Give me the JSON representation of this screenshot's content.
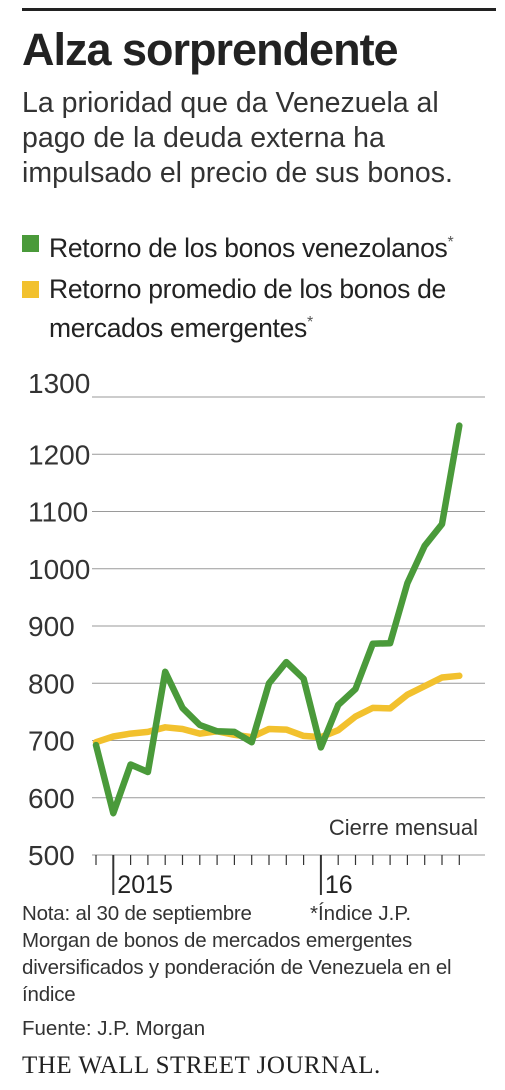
{
  "header": {
    "title": "Alza sorprendente",
    "subtitle": "La prioridad que da Venezuela al pago de la deuda externa ha impulsado el precio de sus bonos."
  },
  "legend": [
    {
      "label": "Retorno de los bonos venezolanos",
      "marker": "*",
      "color": "#4a9a3a"
    },
    {
      "label": "Retorno promedio de los bonos de mercados emergentes",
      "marker": "*",
      "color": "#f2c12e"
    }
  ],
  "chart_data": {
    "type": "line",
    "ylim": [
      500,
      1300
    ],
    "yticks": [
      1300,
      1200,
      1100,
      1000,
      900,
      800,
      700,
      600,
      500
    ],
    "x": [
      "2014-12",
      "2015-01",
      "2015-02",
      "2015-03",
      "2015-04",
      "2015-05",
      "2015-06",
      "2015-07",
      "2015-08",
      "2015-09",
      "2015-10",
      "2015-11",
      "2015-12",
      "2016-01",
      "2016-02",
      "2016-03",
      "2016-04",
      "2016-05",
      "2016-06",
      "2016-07",
      "2016-08",
      "2016-09"
    ],
    "xtick_labels": [
      {
        "label": "2015",
        "at": "2015-01"
      },
      {
        "label": "16",
        "at": "2016-01"
      }
    ],
    "annotation": "Cierre mensual",
    "series": [
      {
        "name": "Retorno de los bonos venezolanos",
        "color": "#4a9a3a",
        "values": [
          692,
          573,
          658,
          645,
          820,
          757,
          727,
          716,
          715,
          697,
          800,
          837,
          808,
          688,
          762,
          790,
          869,
          870,
          975,
          1040,
          1078,
          1250
        ]
      },
      {
        "name": "Retorno promedio de los bonos de mercados emergentes",
        "color": "#f2c12e",
        "values": [
          697,
          707,
          712,
          715,
          723,
          720,
          712,
          716,
          710,
          706,
          720,
          719,
          708,
          706,
          718,
          742,
          757,
          756,
          780,
          795,
          810,
          813
        ]
      }
    ]
  },
  "footer": {
    "note": "Nota: al 30 de septiembre",
    "footnote": "*Índice J.P. Morgan de bonos de mercados emergentes diversificados y ponderación de Venezuela en el índice",
    "source": "Fuente: J.P. Morgan",
    "logo": "THE WALL STREET JOURNAL."
  }
}
